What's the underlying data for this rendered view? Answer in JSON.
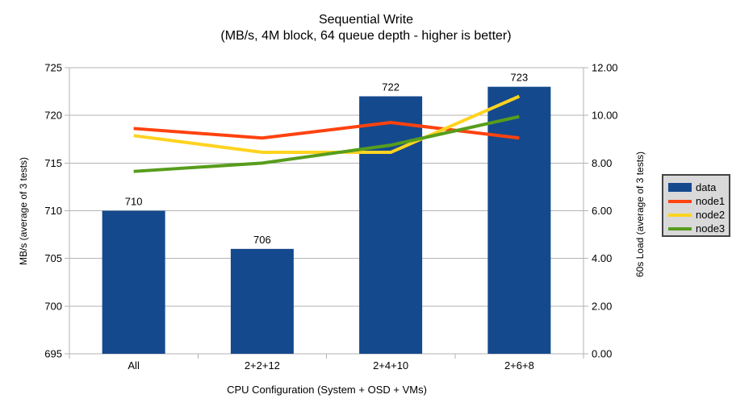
{
  "title": {
    "line1": "Sequential Write",
    "line2": "(MB/s, 4M block, 64 queue depth - higher is better)"
  },
  "colors": {
    "background": "#FFFFFF",
    "bar": "#15498D",
    "node1": "#FF420E",
    "node2": "#FFD320",
    "node3": "#579D1C",
    "grid": "#B3B3B3",
    "text": "#000000",
    "legend_bg": "#D9D9D9",
    "legend_border": "#434343"
  },
  "chart_data": {
    "type": "bar+line",
    "title": "Sequential Write",
    "subtitle": "(MB/s, 4M block, 64 queue depth - higher is better)",
    "categories": [
      "All",
      "2+2+12",
      "2+4+10",
      "2+6+8"
    ],
    "series": [
      {
        "name": "data",
        "type": "bar",
        "axis": "left",
        "color_key": "bar",
        "values": [
          710,
          706,
          722,
          723
        ],
        "data_labels": [
          "710",
          "706",
          "722",
          "723"
        ]
      },
      {
        "name": "node1",
        "type": "line",
        "axis": "right",
        "color_key": "node1",
        "values": [
          9.45,
          9.05,
          9.7,
          9.05
        ]
      },
      {
        "name": "node2",
        "type": "line",
        "axis": "right",
        "color_key": "node2",
        "values": [
          9.15,
          8.45,
          8.45,
          10.8
        ]
      },
      {
        "name": "node3",
        "type": "line",
        "axis": "right",
        "color_key": "node3",
        "values": [
          7.65,
          8.0,
          8.75,
          9.95
        ]
      }
    ],
    "left_axis": {
      "title": "MB/s (average of 3 tests)",
      "min": 695,
      "max": 725,
      "step": 5,
      "ticks": [
        "695",
        "700",
        "705",
        "710",
        "715",
        "720",
        "725"
      ]
    },
    "right_axis": {
      "title": "60s Load (average of 3 tests)",
      "min": 0,
      "max": 12,
      "step": 2,
      "ticks": [
        "0.00",
        "2.00",
        "4.00",
        "6.00",
        "8.00",
        "10.00",
        "12.00"
      ]
    },
    "x_axis": {
      "title": "CPU Configuration (System + OSD + VMs)"
    },
    "grid": "horizontal",
    "legend": {
      "position": "right",
      "items": [
        {
          "label": "data",
          "swatch": "rect",
          "color_key": "bar"
        },
        {
          "label": "node1",
          "swatch": "line",
          "color_key": "node1"
        },
        {
          "label": "node2",
          "swatch": "line",
          "color_key": "node2"
        },
        {
          "label": "node3",
          "swatch": "line",
          "color_key": "node3"
        }
      ]
    }
  }
}
